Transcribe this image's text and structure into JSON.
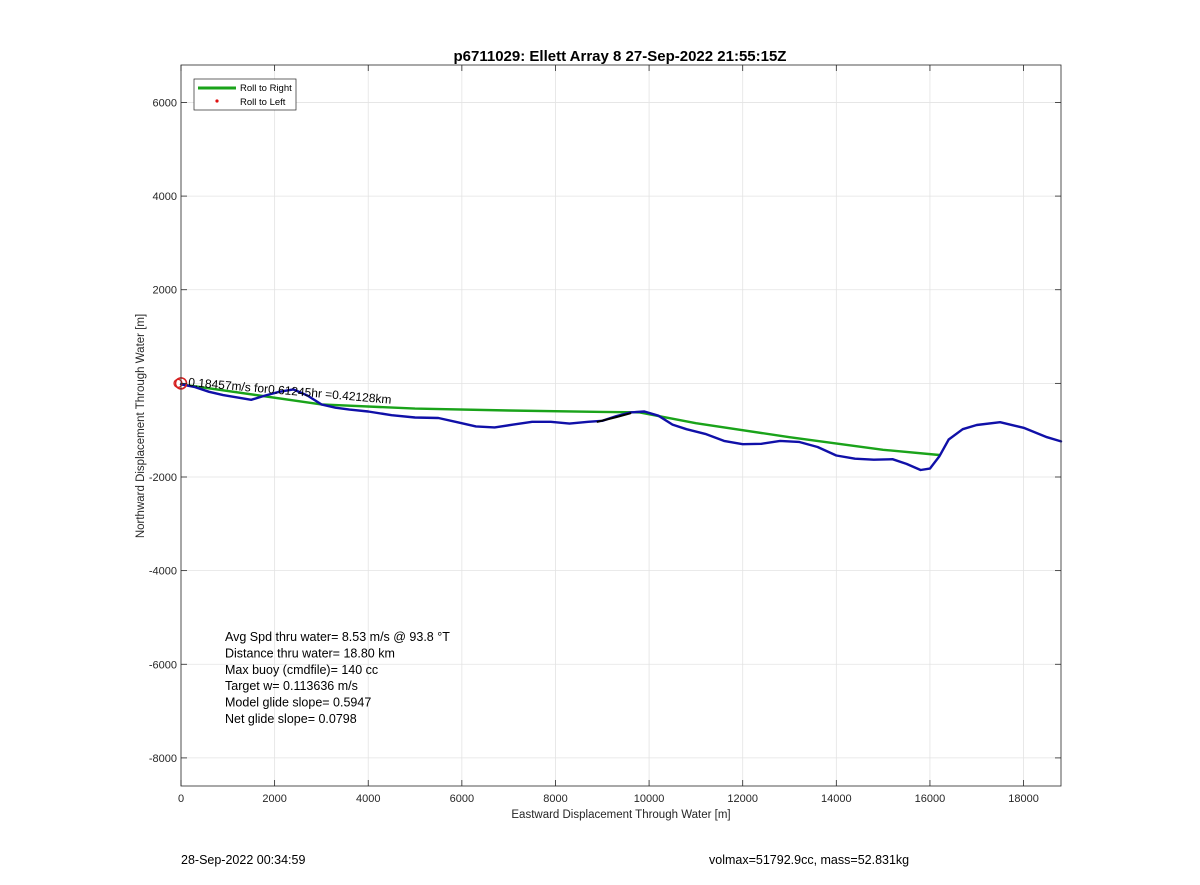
{
  "chart_data": {
    "type": "line",
    "title": "p6711029: Ellett Array 8 27-Sep-2022 21:55:15Z",
    "xlabel": "Eastward Displacement Through Water [m]",
    "ylabel": "Northward Displacement Through Water [m]",
    "xlim": [
      0,
      18800
    ],
    "ylim": [
      -8600,
      6800
    ],
    "x_ticks": [
      0,
      2000,
      4000,
      6000,
      8000,
      10000,
      12000,
      14000,
      16000,
      18000
    ],
    "y_ticks": [
      -8000,
      -6000,
      -4000,
      -2000,
      0,
      2000,
      4000,
      6000
    ],
    "y_tick_labels": [
      "-8000",
      "-6000",
      "-4000",
      "-2000",
      "",
      "2000",
      "4000",
      "6000"
    ],
    "grid": true,
    "legend_position": "top-left",
    "legend": [
      {
        "label": "Roll to Right",
        "color": "#1aa31a",
        "style": "line"
      },
      {
        "label": "Roll to Left",
        "color": "#e01010",
        "style": "dot"
      }
    ],
    "series": [
      {
        "name": "Roll to Right",
        "color": "#1aa31a",
        "x": [
          0,
          3000,
          5000,
          7000,
          9000,
          9800,
          11000,
          13000,
          15000,
          16200
        ],
        "y": [
          -20,
          -450,
          -540,
          -580,
          -610,
          -620,
          -850,
          -1150,
          -1420,
          -1530
        ]
      },
      {
        "color": "#1010a8",
        "x": [
          0,
          300,
          600,
          900,
          1200,
          1500,
          1800,
          2100,
          2400,
          2700,
          3000,
          3300,
          3600,
          4000,
          4500,
          5000,
          5500,
          5900,
          6300,
          6700,
          7100,
          7500,
          7900,
          8300,
          8700,
          9000,
          9300,
          9600,
          9900,
          10200,
          10500,
          10800,
          11200,
          11600,
          12000,
          12400,
          12800,
          13200,
          13600,
          14000,
          14400,
          14800,
          15200,
          15500,
          15800,
          16000,
          16200,
          16400,
          16700,
          17000,
          17500,
          18000,
          18500,
          18800
        ],
        "y": [
          -20,
          -80,
          -180,
          -250,
          -300,
          -350,
          -260,
          -180,
          -130,
          -260,
          -450,
          -520,
          -560,
          -600,
          -680,
          -730,
          -740,
          -830,
          -920,
          -940,
          -880,
          -820,
          -820,
          -860,
          -820,
          -800,
          -700,
          -620,
          -600,
          -690,
          -880,
          -980,
          -1080,
          -1230,
          -1300,
          -1290,
          -1230,
          -1250,
          -1360,
          -1540,
          -1610,
          -1630,
          -1620,
          -1720,
          -1850,
          -1820,
          -1560,
          -1200,
          -980,
          -890,
          -830,
          -950,
          -1150,
          -1240
        ]
      },
      {
        "color": "#000000",
        "x": [
          8900,
          9300,
          9600
        ],
        "y": [
          -820,
          -720,
          -640
        ]
      }
    ],
    "start_marker": {
      "x": 0,
      "y": 0,
      "color": "#d62020"
    },
    "annotation": "0.18457m/s for0.61245hr =0.42128km",
    "stats": [
      "Avg Spd thru water=  8.53 m/s @  93.8 °T",
      "Distance thru water= 18.80 km",
      "Max buoy (cmdfile)= 140 cc",
      "Target w= 0.113636 m/s",
      "Model glide slope= 0.5947",
      "Net glide slope= 0.0798"
    ]
  },
  "footer": {
    "timestamp": "28-Sep-2022 00:34:59",
    "volume_mass": "volmax=51792.9cc, mass=52.831kg"
  }
}
